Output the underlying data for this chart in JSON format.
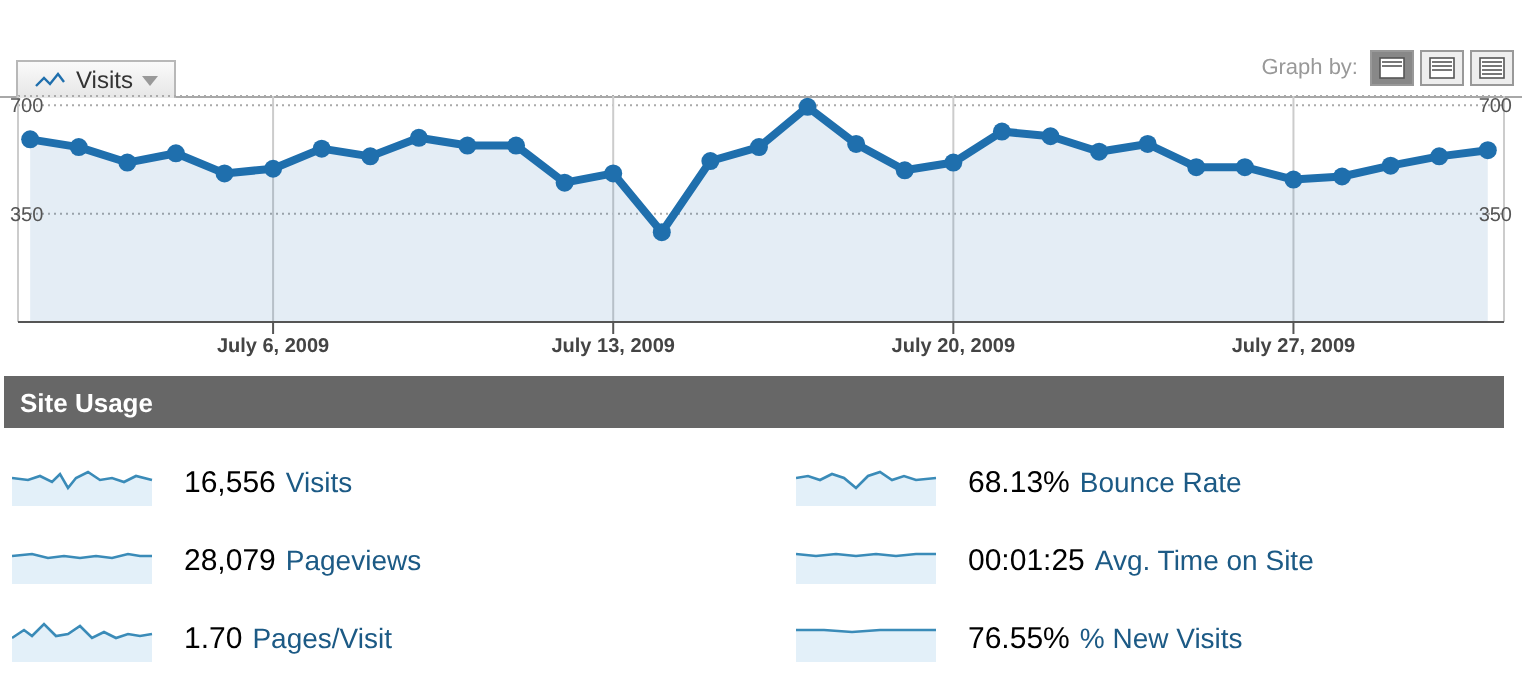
{
  "chart_data": [
    {
      "type": "area",
      "x": [
        "2009-07-01",
        "2009-07-02",
        "2009-07-03",
        "2009-07-04",
        "2009-07-05",
        "2009-07-06",
        "2009-07-07",
        "2009-07-08",
        "2009-07-09",
        "2009-07-10",
        "2009-07-11",
        "2009-07-12",
        "2009-07-13",
        "2009-07-14",
        "2009-07-15",
        "2009-07-16",
        "2009-07-17",
        "2009-07-18",
        "2009-07-19",
        "2009-07-20",
        "2009-07-21",
        "2009-07-22",
        "2009-07-23",
        "2009-07-24",
        "2009-07-25",
        "2009-07-26",
        "2009-07-27",
        "2009-07-28",
        "2009-07-29",
        "2009-07-30",
        "2009-07-31"
      ],
      "series": [
        {
          "name": "Visits",
          "color": "#1f6fad",
          "values": [
            590,
            565,
            515,
            545,
            480,
            495,
            560,
            535,
            595,
            570,
            570,
            450,
            480,
            290,
            520,
            565,
            695,
            575,
            490,
            515,
            615,
            600,
            550,
            575,
            500,
            500,
            460,
            470,
            505,
            535,
            555
          ]
        }
      ],
      "xlim": [
        "2009-06-30T18:00",
        "2009-07-31T08:00"
      ],
      "xticks": [
        {
          "value": "2009-07-06",
          "label": "July 6, 2009"
        },
        {
          "value": "2009-07-13",
          "label": "July 13, 2009"
        },
        {
          "value": "2009-07-20",
          "label": "July 20, 2009"
        },
        {
          "value": "2009-07-27",
          "label": "July 27, 2009"
        }
      ],
      "ylim": [
        0,
        730
      ],
      "yticks": [
        350,
        700
      ],
      "y2lim": [
        0,
        730
      ],
      "y2ticks": [
        350,
        700
      ],
      "grid": true,
      "marker": "circle",
      "legend": "top left",
      "annotations": [
        "Graph by:"
      ]
    },
    {
      "type": "other",
      "title": "Site Usage",
      "annotations": [
        "16,556",
        "Visits",
        "68.13%",
        "Bounce Rate",
        "28,079",
        "Pageviews",
        "00:01:25",
        "Avg. Time on Site",
        "1.70",
        "Pages/Visit",
        "76.55%",
        "% New Visits"
      ]
    }
  ]
}
